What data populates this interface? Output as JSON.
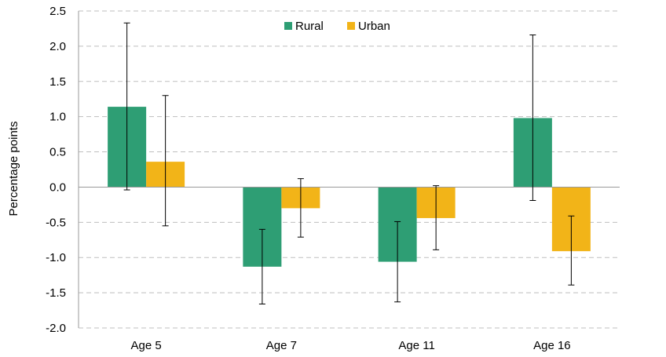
{
  "chart_data": {
    "type": "bar",
    "title": "",
    "xlabel": "",
    "ylabel": "Percentage points",
    "ylim": [
      -2.0,
      2.5
    ],
    "ytick_step": 0.5,
    "ytick_labels": [
      "2.5",
      "2.0",
      "1.5",
      "1.0",
      "0.5",
      "0.0",
      "-0.5",
      "-1.0",
      "-1.5",
      "-2.0"
    ],
    "grid": true,
    "legend_position": "top-center",
    "categories": [
      "Age 5",
      "Age 7",
      "Age 11",
      "Age 16"
    ],
    "series": [
      {
        "name": "Rural",
        "color": "#2e9e74",
        "values": [
          1.14,
          -1.13,
          -1.06,
          0.98
        ],
        "error_low": [
          -0.04,
          -1.66,
          -1.63,
          -0.19
        ],
        "error_high": [
          2.33,
          -0.6,
          -0.49,
          2.16
        ]
      },
      {
        "name": "Urban",
        "color": "#f2b418",
        "values": [
          0.36,
          -0.3,
          -0.44,
          -0.91
        ],
        "error_low": [
          -0.55,
          -0.71,
          -0.89,
          -1.39
        ],
        "error_high": [
          1.3,
          0.12,
          0.02,
          -0.41
        ]
      }
    ]
  }
}
